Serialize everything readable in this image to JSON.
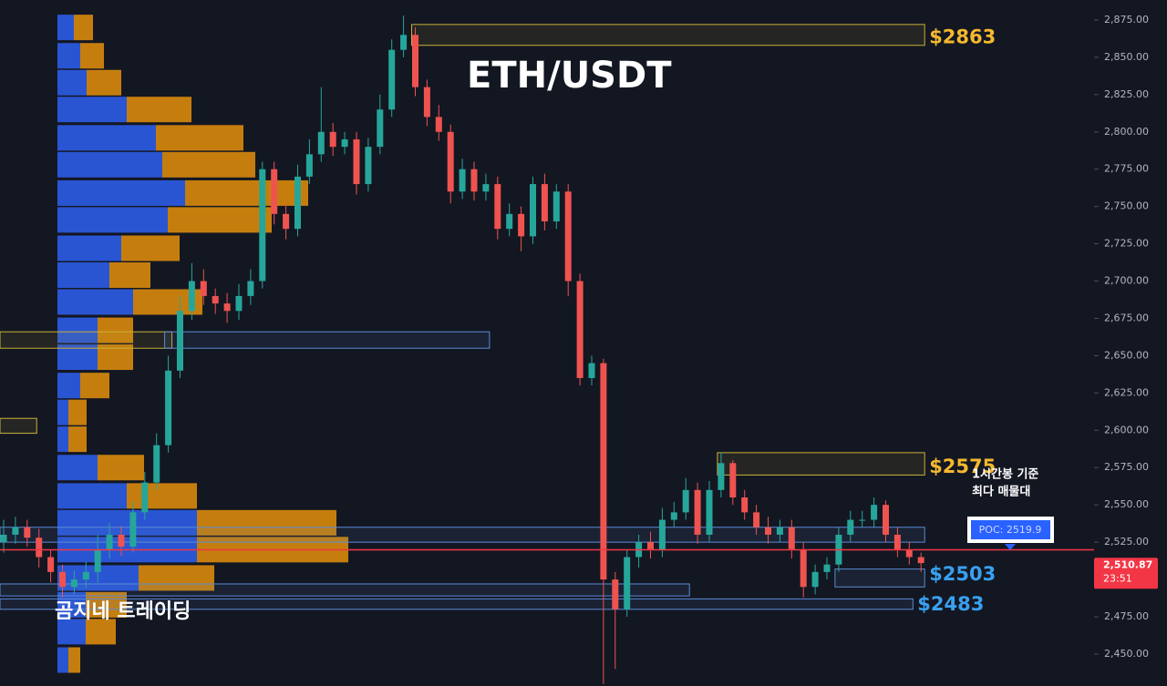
{
  "chart_data": {
    "type": "candlestick",
    "title": "ETH/USDT",
    "watermark": "곰지네 트레이딩",
    "annotation": [
      "1시간봉 기준",
      "최다 매물대"
    ],
    "ylim": [
      2428.6,
      2888.4
    ],
    "yticks": [
      {
        "value": 2450,
        "label": "2,450.00"
      },
      {
        "value": 2475,
        "label": "2,475.00"
      },
      {
        "value": 2500,
        "label": "2,500.00"
      },
      {
        "value": 2525,
        "label": "2,525.00"
      },
      {
        "value": 2550,
        "label": "2,550.00"
      },
      {
        "value": 2575,
        "label": "2,575.00"
      },
      {
        "value": 2600,
        "label": "2,600.00"
      },
      {
        "value": 2625,
        "label": "2,625.00"
      },
      {
        "value": 2650,
        "label": "2,650.00"
      },
      {
        "value": 2675,
        "label": "2,675.00"
      },
      {
        "value": 2700,
        "label": "2,700.00"
      },
      {
        "value": 2725,
        "label": "2,725.00"
      },
      {
        "value": 2750,
        "label": "2,750.00"
      },
      {
        "value": 2775,
        "label": "2,775.00"
      },
      {
        "value": 2800,
        "label": "2,800.00"
      },
      {
        "value": 2825,
        "label": "2,825.00"
      },
      {
        "value": 2850,
        "label": "2,850.00"
      },
      {
        "value": 2875,
        "label": "2,875.00"
      }
    ],
    "up_color": "#26a69a",
    "down_color": "#ef5350",
    "candles": {
      "open": [
        2525,
        2530,
        2535,
        2528,
        2515,
        2505,
        2495,
        2500,
        2505,
        2520,
        2530,
        2522,
        2545,
        2565,
        2590,
        2640,
        2680,
        2700,
        2690,
        2685,
        2680,
        2690,
        2700,
        2775,
        2745,
        2735,
        2770,
        2785,
        2800,
        2790,
        2795,
        2765,
        2790,
        2815,
        2855,
        2865,
        2830,
        2810,
        2800,
        2760,
        2775,
        2760,
        2765,
        2735,
        2745,
        2730,
        2765,
        2740,
        2760,
        2700,
        2635,
        2645,
        2500,
        2480,
        2515,
        2525,
        2520,
        2540,
        2545,
        2560,
        2530,
        2560,
        2578,
        2555,
        2545,
        2535,
        2530,
        2535,
        2520,
        2495,
        2505,
        2510,
        2530,
        2540,
        2540,
        2550,
        2530,
        2520,
        2515
      ],
      "high": [
        2540,
        2542,
        2540,
        2534,
        2520,
        2510,
        2506,
        2512,
        2530,
        2538,
        2536,
        2552,
        2572,
        2598,
        2650,
        2690,
        2712,
        2708,
        2695,
        2692,
        2698,
        2708,
        2780,
        2780,
        2752,
        2778,
        2795,
        2830,
        2806,
        2800,
        2800,
        2796,
        2825,
        2862,
        2878,
        2870,
        2835,
        2818,
        2805,
        2782,
        2780,
        2772,
        2770,
        2752,
        2750,
        2770,
        2772,
        2765,
        2765,
        2705,
        2650,
        2648,
        2505,
        2520,
        2530,
        2532,
        2548,
        2552,
        2568,
        2565,
        2566,
        2585,
        2580,
        2560,
        2550,
        2542,
        2540,
        2540,
        2525,
        2510,
        2515,
        2535,
        2546,
        2546,
        2555,
        2553,
        2535,
        2525,
        2518
      ],
      "low": [
        2518,
        2524,
        2522,
        2508,
        2498,
        2488,
        2490,
        2494,
        2498,
        2514,
        2516,
        2518,
        2540,
        2560,
        2585,
        2635,
        2674,
        2684,
        2678,
        2672,
        2674,
        2684,
        2695,
        2738,
        2728,
        2730,
        2765,
        2780,
        2784,
        2785,
        2758,
        2760,
        2785,
        2810,
        2850,
        2824,
        2804,
        2794,
        2752,
        2755,
        2754,
        2754,
        2728,
        2730,
        2720,
        2725,
        2734,
        2735,
        2690,
        2630,
        2630,
        2430,
        2440,
        2475,
        2508,
        2514,
        2515,
        2535,
        2540,
        2524,
        2525,
        2555,
        2550,
        2540,
        2530,
        2524,
        2525,
        2514,
        2488,
        2490,
        2500,
        2505,
        2525,
        2535,
        2535,
        2525,
        2515,
        2510,
        2505
      ],
      "close": [
        2530,
        2535,
        2528,
        2515,
        2505,
        2495,
        2500,
        2505,
        2520,
        2530,
        2522,
        2545,
        2565,
        2590,
        2640,
        2680,
        2700,
        2690,
        2685,
        2680,
        2690,
        2700,
        2775,
        2745,
        2735,
        2770,
        2785,
        2800,
        2790,
        2795,
        2765,
        2790,
        2815,
        2855,
        2865,
        2830,
        2810,
        2800,
        2760,
        2775,
        2760,
        2765,
        2735,
        2745,
        2730,
        2765,
        2740,
        2760,
        2700,
        2635,
        2645,
        2500,
        2480,
        2515,
        2525,
        2520,
        2540,
        2545,
        2560,
        2530,
        2560,
        2578,
        2555,
        2545,
        2535,
        2530,
        2535,
        2520,
        2495,
        2505,
        2510,
        2530,
        2540,
        2540,
        2550,
        2530,
        2520,
        2515,
        2511
      ]
    },
    "volume_profile": {
      "levels": [
        2870,
        2851,
        2833,
        2815,
        2796,
        2778,
        2759,
        2741,
        2722,
        2704,
        2686,
        2667,
        2649,
        2630,
        2612,
        2594,
        2575,
        2556,
        2538,
        2520,
        2501,
        2483,
        2465,
        2446
      ],
      "buy": [
        18,
        25,
        32,
        76,
        108,
        115,
        140,
        121,
        70,
        57,
        83,
        44,
        44,
        25,
        12,
        12,
        44,
        76,
        153,
        153,
        89,
        31,
        31,
        12
      ],
      "sell": [
        21,
        26,
        38,
        71,
        96,
        102,
        135,
        114,
        64,
        45,
        76,
        39,
        39,
        32,
        20,
        20,
        51,
        77,
        153,
        166,
        83,
        45,
        33,
        13
      ],
      "buy_color": "#2e5ce6",
      "sell_color": "#d98a0c"
    },
    "zones": [
      {
        "low": 2858,
        "high": 2872,
        "from": 35,
        "to": 78,
        "color": "#c9b037",
        "price": {
          "value": 2863,
          "label": "$2863"
        },
        "label_color": "#f5b82e"
      },
      {
        "low": 2570,
        "high": 2585,
        "from": 61,
        "to": 78,
        "color": "#c9b037",
        "price": {
          "value": 2575,
          "label": "$2575"
        },
        "label_color": "#f5b82e"
      },
      {
        "low": 2495,
        "high": 2507,
        "from": 71,
        "to": 78,
        "color": "#5b8bd6",
        "price": {
          "value": 2503,
          "label": "$2503"
        },
        "label_color": "#3aa0f0"
      },
      {
        "low": 2480,
        "high": 2487,
        "from": 0,
        "to": 77,
        "color": "#5b8bd6",
        "price": {
          "value": 2483,
          "label": "$2483"
        },
        "label_color": "#3aa0f0"
      },
      {
        "low": 2655,
        "high": 2666,
        "from": 0,
        "to": 14,
        "color": "#c9b037"
      },
      {
        "low": 2655,
        "high": 2666,
        "from": 14,
        "to": 41,
        "color": "#5b8bd6"
      },
      {
        "low": 2598,
        "high": 2608,
        "from": 0,
        "to": 2.5,
        "color": "#c9b037"
      },
      {
        "low": 2525,
        "high": 2535,
        "from": 0,
        "to": 78,
        "color": "#5b8bd6"
      },
      {
        "low": 2489,
        "high": 2497,
        "from": 0,
        "to": 58,
        "color": "#5b8bd6"
      }
    ],
    "poc": {
      "value": 2519.9,
      "label": "POC: 2519.9"
    },
    "poc_color": "#f23645",
    "last_price": {
      "value": 2510.87,
      "label": "2,510.87"
    },
    "countdown": "23:51"
  }
}
